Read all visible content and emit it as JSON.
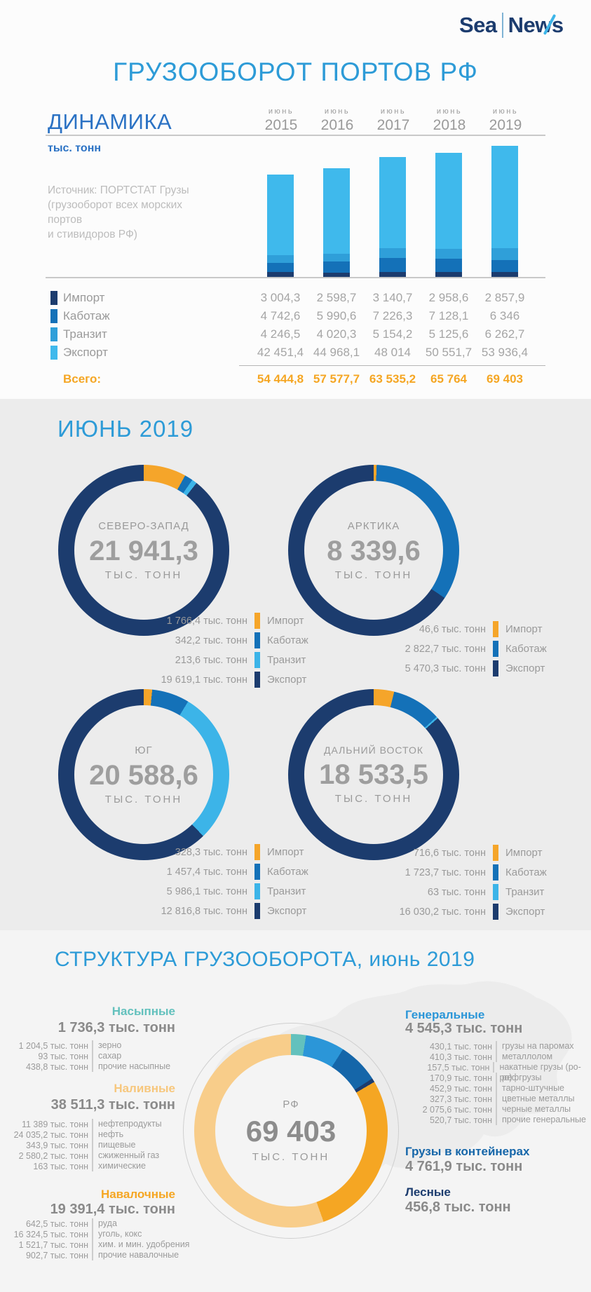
{
  "header": {
    "logo_sea": "Sea",
    "logo_news": "News"
  },
  "page_title": "ГРУЗООБОРОТ ПОРТОВ РФ",
  "dynamics": {
    "heading": "ДИНАМИКА",
    "unit": "тыс. тонн",
    "source_lines": [
      "Источник: ПОРТСТАТ Грузы",
      "(грузооборот всех морских портов",
      "и стивидоров РФ)"
    ],
    "years": [
      {
        "month": "июнь",
        "year": "2015"
      },
      {
        "month": "июнь",
        "year": "2016"
      },
      {
        "month": "июнь",
        "year": "2017"
      },
      {
        "month": "июнь",
        "year": "2018"
      },
      {
        "month": "июнь",
        "year": "2019"
      }
    ],
    "rows": [
      {
        "label": "Импорт",
        "color": "#1c3c6e",
        "values": [
          "3 004,3",
          "2 598,7",
          "3 140,7",
          "2 958,6",
          "2 857,9"
        ]
      },
      {
        "label": "Каботаж",
        "color": "#1471b8",
        "values": [
          "4 742,6",
          "5 990,6",
          "7 226,3",
          "7 128,1",
          "6 346"
        ]
      },
      {
        "label": "Транзит",
        "color": "#2f9fd9",
        "values": [
          "4 246,5",
          "4 020,3",
          "5 154,2",
          "5 125,6",
          "6 262,7"
        ]
      },
      {
        "label": "Экспорт",
        "color": "#3fb9ec",
        "values": [
          "42 451,4",
          "44 968,1",
          "48 014",
          "50 551,7",
          "53 936,4"
        ]
      }
    ],
    "total": {
      "label": "Всего:",
      "values": [
        "54 444,8",
        "57 577,7",
        "63 535,2",
        "65 764",
        "69 403"
      ]
    }
  },
  "june": {
    "heading": "ИЮНЬ 2019",
    "regions": [
      {
        "name": "СЕВЕРО-ЗАПАД",
        "total": "21 941,3",
        "unit": "ТЫС. ТОНН",
        "legend": [
          {
            "value": "1 766,4 тыс. тонн",
            "label": "Импорт",
            "color": "#f5a52a"
          },
          {
            "value": "342,2 тыс. тонн",
            "label": "Каботаж",
            "color": "#1471b8"
          },
          {
            "value": "213,6 тыс. тонн",
            "label": "Транзит",
            "color": "#3cb4e8"
          },
          {
            "value": "19 619,1 тыс. тонн",
            "label": "Экспорт",
            "color": "#1c3c6e"
          }
        ]
      },
      {
        "name": "АРКТИКА",
        "total": "8 339,6",
        "unit": "ТЫС. ТОНН",
        "legend": [
          {
            "value": "46,6 тыс. тонн",
            "label": "Импорт",
            "color": "#f5a52a"
          },
          {
            "value": "2 822,7 тыс. тонн",
            "label": "Каботаж",
            "color": "#1471b8"
          },
          {
            "value": "5 470,3 тыс. тонн",
            "label": "Экспорт",
            "color": "#1c3c6e"
          }
        ]
      },
      {
        "name": "ЮГ",
        "total": "20 588,6",
        "unit": "ТЫС. ТОНН",
        "legend": [
          {
            "value": "328,3 тыс. тонн",
            "label": "Импорт",
            "color": "#f5a52a"
          },
          {
            "value": "1 457,4 тыс. тонн",
            "label": "Каботаж",
            "color": "#1471b8"
          },
          {
            "value": "5 986,1 тыс. тонн",
            "label": "Транзит",
            "color": "#3cb4e8"
          },
          {
            "value": "12 816,8 тыс. тонн",
            "label": "Экспорт",
            "color": "#1c3c6e"
          }
        ]
      },
      {
        "name": "ДАЛЬНИЙ ВОСТОК",
        "total": "18 533,5",
        "unit": "ТЫС. ТОНН",
        "legend": [
          {
            "value": "716,6 тыс. тонн",
            "label": "Импорт",
            "color": "#f5a52a"
          },
          {
            "value": "1 723,7 тыс. тонн",
            "label": "Каботаж",
            "color": "#1471b8"
          },
          {
            "value": "63 тыс. тонн",
            "label": "Транзит",
            "color": "#3cb4e8"
          },
          {
            "value": "16 030,2 тыс. тонн",
            "label": "Экспорт",
            "color": "#1c3c6e"
          }
        ]
      }
    ]
  },
  "structure": {
    "heading": "СТРУКТУРА ГРУЗООБОРОТА, июнь 2019",
    "nasyp": {
      "name": "Насыпные",
      "color": "#63c1bd",
      "total": "1 736,3 тыс. тонн",
      "items": [
        {
          "value": "1 204,5 тыс. тонн",
          "label": "зерно"
        },
        {
          "value": "93 тыс. тонн",
          "label": "сахар"
        },
        {
          "value": "438,8 тыс. тонн",
          "label": "прочие насыпные"
        }
      ]
    },
    "naliv": {
      "name": "Наливные",
      "color": "#f7c77d",
      "total": "38 511,3 тыс. тонн",
      "items": [
        {
          "value": "11 389 тыс. тонн",
          "label": "нефтепродукты"
        },
        {
          "value": "24 035,2 тыс. тонн",
          "label": "нефть"
        },
        {
          "value": "343,9 тыс. тонн",
          "label": "пищевые"
        },
        {
          "value": "2 580,2 тыс. тонн",
          "label": "сжиженный газ"
        },
        {
          "value": "163 тыс. тонн",
          "label": "химические"
        }
      ]
    },
    "naval": {
      "name": "Навалочные",
      "color": "#f5a623",
      "total": "19 391,4 тыс. тонн",
      "items": [
        {
          "value": "642,5 тыс. тонн",
          "label": "руда"
        },
        {
          "value": "16 324,5 тыс. тонн",
          "label": "уголь, кокс"
        },
        {
          "value": "1 521,7 тыс. тонн",
          "label": "хим. и мин. удобрения"
        },
        {
          "value": "902,7 тыс. тонн",
          "label": "прочие навалочные"
        }
      ]
    },
    "gener": {
      "name": "Генеральные",
      "color": "#2b96d8",
      "total": "4 545,3 тыс. тонн",
      "items": [
        {
          "value": "430,1 тыс. тонн",
          "label": "грузы на паромах"
        },
        {
          "value": "410,3 тыс. тонн",
          "label": "металлолом"
        },
        {
          "value": "157,5 тыс. тонн",
          "label": "накатные грузы (ро-ро)"
        },
        {
          "value": "170,9 тыс. тонн",
          "label": "рефгрузы"
        },
        {
          "value": "452,9 тыс. тонн",
          "label": "тарно-штучные"
        },
        {
          "value": "327,3 тыс. тонн",
          "label": "цветные металлы"
        },
        {
          "value": "2 075,6 тыс. тонн",
          "label": "черные металлы"
        },
        {
          "value": "520,7 тыс. тонн",
          "label": "прочие генеральные"
        }
      ]
    },
    "cont": {
      "name": "Грузы в контейнерах",
      "color": "#1566a9",
      "total": "4 761,9 тыс. тонн",
      "items": []
    },
    "les": {
      "name": "Лесные",
      "color": "#1c3c6e",
      "total": "456,8 тыс. тонн",
      "items": []
    },
    "center": {
      "label": "РФ",
      "value": "69 403",
      "unit": "ТЫС. ТОНН"
    }
  },
  "chart_data": [
    {
      "type": "bar",
      "stacked": true,
      "title": "Динамика грузооборота портов РФ",
      "ylabel": "тыс. тонн",
      "categories": [
        "июнь 2015",
        "июнь 2016",
        "июнь 2017",
        "июнь 2018",
        "июнь 2019"
      ],
      "series": [
        {
          "name": "Импорт",
          "color": "#1c3c6e",
          "values": [
            3004.3,
            2598.7,
            3140.7,
            2958.6,
            2857.9
          ]
        },
        {
          "name": "Каботаж",
          "color": "#1471b8",
          "values": [
            4742.6,
            5990.6,
            7226.3,
            7128.1,
            6346
          ]
        },
        {
          "name": "Транзит",
          "color": "#2f9fd9",
          "values": [
            4246.5,
            4020.3,
            5154.2,
            5125.6,
            6262.7
          ]
        },
        {
          "name": "Экспорт",
          "color": "#3fb9ec",
          "values": [
            42451.4,
            44968.1,
            48014,
            50551.7,
            53936.4
          ]
        }
      ],
      "totals": [
        54444.8,
        57577.7,
        63535.2,
        65764,
        69403
      ]
    },
    {
      "type": "pie",
      "title": "СЕВЕРО-ЗАПАД",
      "total": 21941.3,
      "unit": "тыс. тонн",
      "segments": [
        {
          "label": "Импорт",
          "value": 1766.4,
          "color": "#f5a52a"
        },
        {
          "label": "Каботаж",
          "value": 342.2,
          "color": "#1471b8"
        },
        {
          "label": "Транзит",
          "value": 213.6,
          "color": "#3cb4e8"
        },
        {
          "label": "Экспорт",
          "value": 19619.1,
          "color": "#1c3c6e"
        }
      ]
    },
    {
      "type": "pie",
      "title": "АРКТИКА",
      "total": 8339.6,
      "unit": "тыс. тонн",
      "segments": [
        {
          "label": "Импорт",
          "value": 46.6,
          "color": "#f5a52a"
        },
        {
          "label": "Каботаж",
          "value": 2822.7,
          "color": "#1471b8"
        },
        {
          "label": "Экспорт",
          "value": 5470.3,
          "color": "#1c3c6e"
        }
      ]
    },
    {
      "type": "pie",
      "title": "ЮГ",
      "total": 20588.6,
      "unit": "тыс. тонн",
      "segments": [
        {
          "label": "Импорт",
          "value": 328.3,
          "color": "#f5a52a"
        },
        {
          "label": "Каботаж",
          "value": 1457.4,
          "color": "#1471b8"
        },
        {
          "label": "Транзит",
          "value": 5986.1,
          "color": "#3cb4e8"
        },
        {
          "label": "Экспорт",
          "value": 12816.8,
          "color": "#1c3c6e"
        }
      ]
    },
    {
      "type": "pie",
      "title": "ДАЛЬНИЙ ВОСТОК",
      "total": 18533.5,
      "unit": "тыс. тонн",
      "segments": [
        {
          "label": "Импорт",
          "value": 716.6,
          "color": "#f5a52a"
        },
        {
          "label": "Каботаж",
          "value": 1723.7,
          "color": "#1471b8"
        },
        {
          "label": "Транзит",
          "value": 63,
          "color": "#3cb4e8"
        },
        {
          "label": "Экспорт",
          "value": 16030.2,
          "color": "#1c3c6e"
        }
      ]
    },
    {
      "type": "pie",
      "title": "РФ — структура грузооборота",
      "total": 69403,
      "unit": "тыс. тонн",
      "segments": [
        {
          "label": "Насыпные",
          "value": 1736.3,
          "color": "#63c1bd"
        },
        {
          "label": "Генеральные",
          "value": 4545.3,
          "color": "#2b96d8"
        },
        {
          "label": "Грузы в контейнерах",
          "value": 4761.9,
          "color": "#1566a9"
        },
        {
          "label": "Лесные",
          "value": 456.8,
          "color": "#1c3c6e"
        },
        {
          "label": "Навалочные",
          "value": 19391.4,
          "color": "#f5a623"
        },
        {
          "label": "Наливные",
          "value": 38511.3,
          "color": "#f8cd8a"
        }
      ]
    }
  ]
}
